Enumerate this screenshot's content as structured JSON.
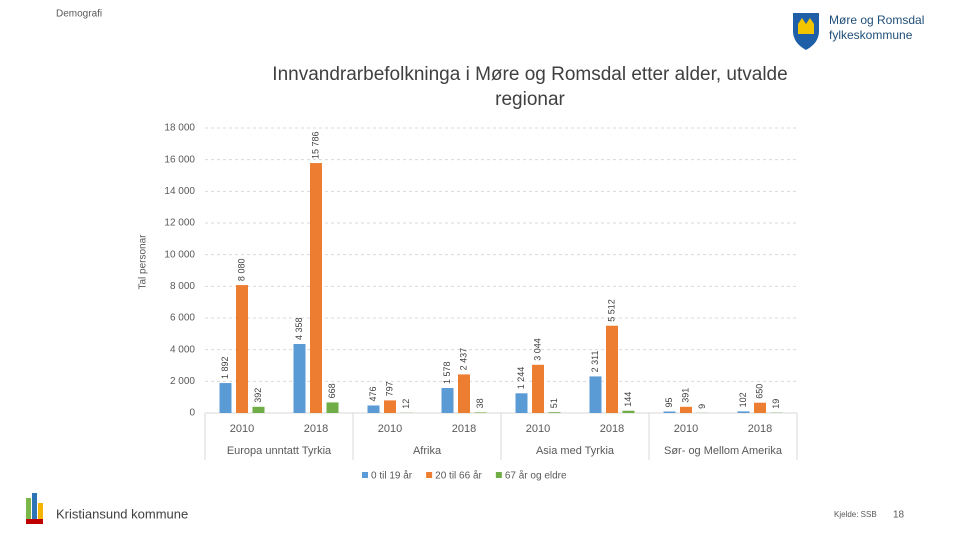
{
  "header": {
    "section": "Demografi",
    "logo_line1": "Møre og Romsdal",
    "logo_line2": "fylkeskommune"
  },
  "footer": {
    "municipality": "Kristiansund kommune",
    "source": "Kjelde: SSB",
    "page": "18"
  },
  "chart_data": {
    "type": "bar",
    "title": "Innvandrarbefolkninga i Møre og Romsdal etter alder, utvalde regionar",
    "y_label": "Tal personar",
    "categories": [
      "2010",
      "2018",
      "2010",
      "2018",
      "2010",
      "2018",
      "2010",
      "2018"
    ],
    "category_groups": [
      "Europa unntatt Tyrkia",
      "Afrika",
      "Asia med Tyrkia",
      "Sør- og Mellom Amerika"
    ],
    "series": [
      {
        "name": "0 til 19 år",
        "color": "#5b9bd5",
        "values": [
          1892,
          4358,
          476,
          1578,
          1244,
          2311,
          95,
          102
        ],
        "value_labels": [
          "1 892",
          "4 358",
          "476",
          "1 578",
          "1 244",
          "2 311",
          "95",
          "102"
        ]
      },
      {
        "name": "20 til 66 år",
        "color": "#ed7d31",
        "values": [
          8080,
          15786,
          797,
          2437,
          3044,
          5512,
          391,
          650
        ],
        "value_labels": [
          "8 080",
          "15 786",
          "797",
          "2 437",
          "3 044",
          "5 512",
          "391",
          "650"
        ]
      },
      {
        "name": "67 år og eldre",
        "color": "#70ad47",
        "values": [
          392,
          668,
          12,
          38,
          51,
          144,
          9,
          19
        ],
        "value_labels": [
          "392",
          "668",
          "12",
          "38",
          "51",
          "144",
          "9",
          "19"
        ]
      }
    ],
    "ylim": [
      0,
      18000
    ],
    "yticks": [
      0,
      {
        "value": 2000,
        "label": "2 000"
      },
      {
        "value": 4000,
        "label": "4 000"
      },
      {
        "value": 6000,
        "label": "6 000"
      },
      {
        "value": 8000,
        "label": "8 000"
      },
      {
        "value": 10000,
        "label": "10 000"
      },
      {
        "value": 12000,
        "label": "12 000"
      },
      {
        "value": 14000,
        "label": "14 000"
      },
      {
        "value": 16000,
        "label": "16 000"
      },
      {
        "value": 18000,
        "label": "18 000"
      }
    ],
    "grid": true
  }
}
